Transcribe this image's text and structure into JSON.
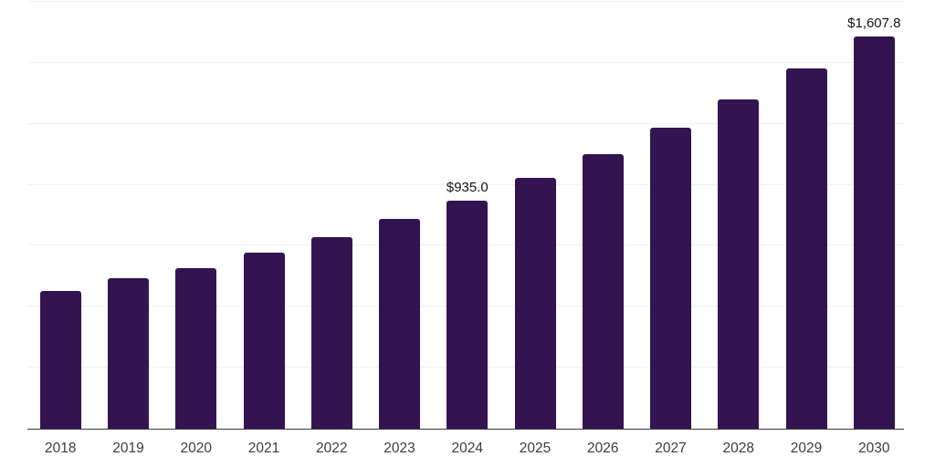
{
  "chart_data": {
    "type": "bar",
    "title": "",
    "xlabel": "",
    "ylabel": "",
    "categories": [
      "2018",
      "2019",
      "2020",
      "2021",
      "2022",
      "2023",
      "2024",
      "2025",
      "2026",
      "2027",
      "2028",
      "2029",
      "2030"
    ],
    "values": [
      564,
      617,
      659,
      722,
      786,
      860,
      935.0,
      1029,
      1126,
      1234,
      1351,
      1478,
      1607.8
    ],
    "labeled_points": [
      {
        "category": "2024",
        "label": "$935.0"
      },
      {
        "category": "2030",
        "label": "$1,607.8"
      }
    ],
    "ylim": [
      0,
      1750
    ],
    "gridline_step": 250,
    "grid": "horizontal",
    "legend": "none",
    "colors": {
      "bar": "#331450",
      "grid": "#f2f2f3",
      "axis": "#3a3a3a",
      "value_label": "#141414",
      "tick_label": "#3d3d3d",
      "background": "#ffffff"
    }
  }
}
